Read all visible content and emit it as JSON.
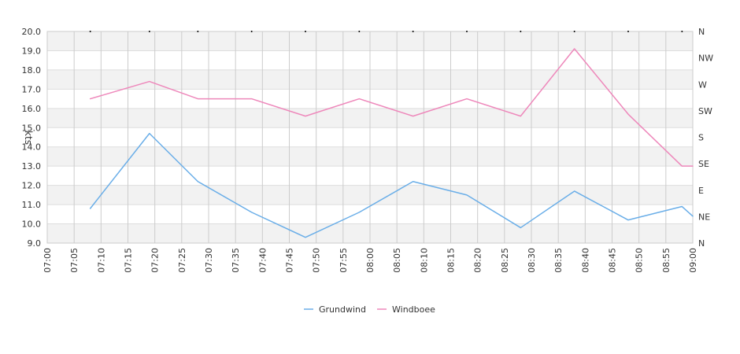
{
  "chart_data": {
    "type": "line",
    "ylabel": "kts",
    "ylim": [
      9.0,
      20.0
    ],
    "y_ticks": [
      "9.0",
      "10.0",
      "11.0",
      "12.0",
      "13.0",
      "14.0",
      "15.0",
      "16.0",
      "17.0",
      "18.0",
      "19.0",
      "20.0"
    ],
    "x_ticks": [
      "07:00",
      "07:05",
      "07:10",
      "07:15",
      "07:20",
      "07:25",
      "07:30",
      "07:35",
      "07:40",
      "07:45",
      "07:50",
      "07:55",
      "08:00",
      "08:05",
      "08:10",
      "08:15",
      "08:20",
      "08:25",
      "08:30",
      "08:35",
      "08:40",
      "08:45",
      "08:50",
      "08:55",
      "09:00"
    ],
    "xlim": [
      "07:00",
      "09:00"
    ],
    "direction_ticks": [
      "N",
      "NW",
      "W",
      "SW",
      "S",
      "SE",
      "E",
      "NE",
      "N"
    ],
    "grid": true,
    "legend_position": "bottom",
    "series": [
      {
        "name": "Grundwind",
        "color": "#6aaee8",
        "points": [
          [
            "07:08",
            10.8
          ],
          [
            "07:19",
            14.7
          ],
          [
            "07:28",
            12.2
          ],
          [
            "07:38",
            10.6
          ],
          [
            "07:48",
            9.3
          ],
          [
            "07:58",
            10.6
          ],
          [
            "08:08",
            12.2
          ],
          [
            "08:18",
            11.5
          ],
          [
            "08:28",
            9.8
          ],
          [
            "08:38",
            11.7
          ],
          [
            "08:48",
            10.2
          ],
          [
            "08:58",
            10.9
          ],
          [
            "09:00",
            10.4
          ]
        ]
      },
      {
        "name": "Windboee",
        "color": "#ee88bb",
        "points": [
          [
            "07:08",
            16.5
          ],
          [
            "07:19",
            17.4
          ],
          [
            "07:28",
            16.5
          ],
          [
            "07:38",
            16.5
          ],
          [
            "07:48",
            15.6
          ],
          [
            "07:58",
            16.5
          ],
          [
            "08:08",
            15.6
          ],
          [
            "08:18",
            16.5
          ],
          [
            "08:28",
            15.6
          ],
          [
            "08:38",
            19.1
          ],
          [
            "08:48",
            15.7
          ],
          [
            "08:58",
            13.0
          ],
          [
            "09:00",
            13.0
          ]
        ]
      }
    ],
    "direction_points": [
      "07:08",
      "07:19",
      "07:28",
      "07:38",
      "07:48",
      "07:58",
      "08:08",
      "08:18",
      "08:28",
      "08:38",
      "08:48",
      "08:58"
    ]
  }
}
